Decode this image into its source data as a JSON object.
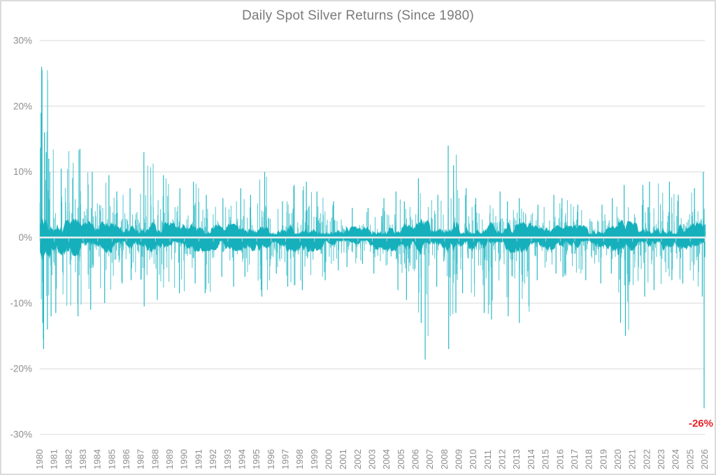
{
  "chart_data": {
    "type": "bar",
    "title": "Daily Spot Silver Returns (Since 1980)",
    "xlabel": "",
    "ylabel": "",
    "ylim": [
      -30,
      30
    ],
    "grid": "horizontal",
    "legend": "none",
    "y_tick_values": [
      30,
      20,
      10,
      0,
      -10,
      -20,
      -30
    ],
    "y_tick_labels": [
      "30%",
      "20%",
      "10%",
      "0%",
      "-10%",
      "-20%",
      "-30%"
    ],
    "x_tick_labels": [
      "1980",
      "1981",
      "1982",
      "1983",
      "1984",
      "1985",
      "1986",
      "1987",
      "1988",
      "1989",
      "1990",
      "1991",
      "1992",
      "1993",
      "1994",
      "1995",
      "1996",
      "1997",
      "1998",
      "1999",
      "2000",
      "2001",
      "2002",
      "2003",
      "2004",
      "2005",
      "2006",
      "2007",
      "2008",
      "2009",
      "2010",
      "2011",
      "2012",
      "2013",
      "2014",
      "2015",
      "2016",
      "2017",
      "2018",
      "2019",
      "2020",
      "2021",
      "2022",
      "2023",
      "2024",
      "2025",
      "2026"
    ],
    "yearly_envelope": {
      "years": [
        1980,
        1981,
        1982,
        1983,
        1984,
        1985,
        1986,
        1987,
        1988,
        1989,
        1990,
        1991,
        1992,
        1993,
        1994,
        1995,
        1996,
        1997,
        1998,
        1999,
        2000,
        2001,
        2002,
        2003,
        2004,
        2005,
        2006,
        2007,
        2008,
        2009,
        2010,
        2011,
        2012,
        2013,
        2014,
        2015,
        2016,
        2017,
        2018,
        2019,
        2020,
        2021,
        2022,
        2023,
        2024,
        2025
      ],
      "max_daily_return_pct": [
        26,
        10.5,
        13.5,
        10,
        9.5,
        7,
        7.5,
        13,
        9.5,
        7.5,
        8.5,
        6.5,
        6,
        7.5,
        6.5,
        10,
        5.5,
        8,
        8.5,
        7,
        5.5,
        4.5,
        4.5,
        6,
        7,
        5.5,
        9,
        6.5,
        14,
        7.5,
        6,
        7,
        5.5,
        6,
        5,
        6.5,
        6,
        5,
        5,
        6,
        8,
        8,
        8.5,
        8.5,
        6.5,
        7.5
      ],
      "min_daily_return_pct": [
        -17,
        -11.5,
        -12,
        -11,
        -10,
        -7,
        -6.5,
        -10.5,
        -9.5,
        -8.5,
        -7,
        -8.5,
        -6,
        -7.5,
        -6,
        -9,
        -5.5,
        -7.5,
        -8,
        -6.5,
        -5,
        -4.5,
        -4,
        -5.5,
        -8,
        -9.5,
        -18.6,
        -7.5,
        -17,
        -8.5,
        -11.5,
        -12.5,
        -12,
        -13,
        -6.5,
        -5.5,
        -6,
        -6.5,
        -7,
        -5.5,
        -15,
        -9,
        -8,
        -6.5,
        -7,
        -9
      ]
    },
    "extra_notable_spikes": [
      {
        "year": 1980,
        "at": 0.08,
        "pct": 19
      },
      {
        "year": 1980,
        "at": 0.15,
        "pct": 25.5
      },
      {
        "year": 1980,
        "at": 0.2,
        "pct": -13
      },
      {
        "year": 1980,
        "at": 0.24,
        "pct": -15.5
      },
      {
        "year": 1980,
        "at": 0.32,
        "pct": 16
      },
      {
        "year": 1980,
        "at": 0.44,
        "pct": 13
      },
      {
        "year": 1980,
        "at": 0.52,
        "pct": -14
      },
      {
        "year": 1980,
        "at": 0.62,
        "pct": 12
      },
      {
        "year": 1980,
        "at": 0.78,
        "pct": -12
      },
      {
        "year": 2006,
        "at": 0.38,
        "pct": -13
      },
      {
        "year": 2008,
        "at": 0.62,
        "pct": 11
      },
      {
        "year": 2008,
        "at": 0.78,
        "pct": -11.5
      },
      {
        "year": 2020,
        "at": 0.17,
        "pct": -13
      }
    ],
    "final_days_2026": [
      {
        "at": -0.1,
        "pct": 10
      },
      {
        "at": -0.05,
        "pct": -26
      },
      {
        "at": 0.0,
        "pct": -3
      },
      {
        "at": 0.03,
        "pct": 2
      }
    ],
    "annotation": {
      "text": "-26%",
      "value_pct": -26,
      "year": 2026,
      "color": "#e82127"
    }
  },
  "palette": {
    "teal_core": "#15b0bc",
    "teal_spike": "#52c7d0",
    "teal_extreme": "#2ab9c4",
    "grid": "#d9d9d9",
    "axis_overlay": "#f1f1f1",
    "axis_tick": "#c6c6c6",
    "label": "#8e8e8e",
    "title": "#7a7a7a",
    "border": "#dbdbdb",
    "background": "#ffffff"
  }
}
